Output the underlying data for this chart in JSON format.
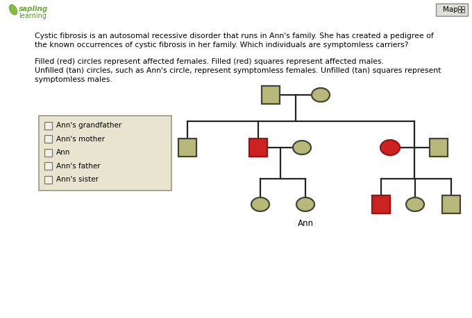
{
  "bg_color": "#ffffff",
  "tan_fill": "#b8b87a",
  "tan_edge": "#444433",
  "red_fill": "#cc2222",
  "red_edge": "#991111",
  "white_bg": "#ffffff",
  "legend_bg": "#e8e4d0",
  "legend_border": "#999880",
  "checkbox_bg": "#f0f0e8",
  "logo_green": "#7ab648",
  "logo_text_sapling": "#6aaa38",
  "logo_text_learning": "#5a9a28",
  "map_bg": "#e0e0d8",
  "legend_items": [
    "Ann's grandfather",
    "Ann's mother",
    "Ann",
    "Ann's father",
    "Ann's sister"
  ],
  "ann_label": "Ann",
  "desc1": "Cystic fibrosis is an autosomal recessive disorder that runs in Ann's family. She has created a pedigree of\nthe known occurrences of cystic fibrosis in her family. Which individuals are symptomless carriers?",
  "desc2": "Filled (red) circles represent affected females. Filled (red) squares represent affected males.\nUnfilled (tan) circles, such as Ann's circle, represent symptomless females. Unfilled (tan) squares represent\nsymptomless males."
}
